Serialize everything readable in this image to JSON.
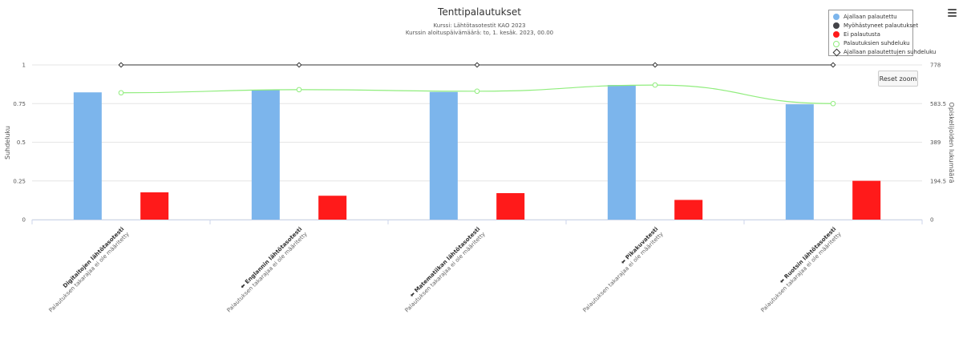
{
  "chart_data": {
    "type": "bar",
    "title": "Tenttipalautukset",
    "subtitle_lines": [
      "Kurssi: Lähtötasotestit KAO 2023",
      "Kurssin aloituspäivämäärä: to, 1. kesäk. 2023, 00.00"
    ],
    "categories": [
      {
        "name": "Digitaitojen lähtötasotesti",
        "sub": "Palautuksen takarajaa ei ole määritetty",
        "prefix": ""
      },
      {
        "name": "Englannin lähtötasotesti",
        "sub": "Palautuksen takarajaa ei ole määritetty",
        "prefix": "⬅"
      },
      {
        "name": "Matematiikan lähtötasotesti",
        "sub": "Palautuksen takarajaa ei ole määritetty",
        "prefix": "⬅"
      },
      {
        "name": "Pikakuvatesti",
        "sub": "Palautuksen takarajaa ei ole määritetty",
        "prefix": "⬅"
      },
      {
        "name": "Ruotsin lähtötasotesti",
        "sub": "Palautuksen takarajaa ei ole määritetty",
        "prefix": "⬅"
      }
    ],
    "ylabel_left": "Suhdeluku",
    "ylabel_right": "Opiskelijoiden lukumäärä",
    "ylim_left": [
      0,
      1
    ],
    "yticks_left": [
      "0",
      "0.25",
      "0.5",
      "0.75",
      "1"
    ],
    "yticks_right": [
      "0",
      "194.5",
      "389",
      "583.5",
      "778"
    ],
    "ylim_right": [
      0,
      778
    ],
    "series": [
      {
        "name": "Ajallaan palautettu",
        "type": "bar",
        "axis": "right",
        "color": "#7cb5ec",
        "values": [
          640,
          652,
          642,
          677,
          580
        ]
      },
      {
        "name": "Myöhästyneet palautukset",
        "type": "bar",
        "axis": "right",
        "color": "#434348",
        "values": [
          0,
          0,
          0,
          0,
          0
        ]
      },
      {
        "name": "Ei palautusta",
        "type": "bar",
        "axis": "right",
        "color": "#ff1a1a",
        "values": [
          137,
          120,
          133,
          99,
          195
        ]
      },
      {
        "name": "Palautuksien suhdeluku",
        "type": "line",
        "axis": "left",
        "color": "#90ed7d",
        "values": [
          0.82,
          0.84,
          0.83,
          0.87,
          0.75
        ]
      },
      {
        "name": "Ajallaan palautettujen suhdeluku",
        "type": "line",
        "axis": "left",
        "color": "#333333",
        "values": [
          1,
          1,
          1,
          1,
          1
        ]
      }
    ]
  },
  "controls": {
    "reset_zoom": "Reset zoom",
    "menu_icon": "hamburger-menu-icon"
  }
}
